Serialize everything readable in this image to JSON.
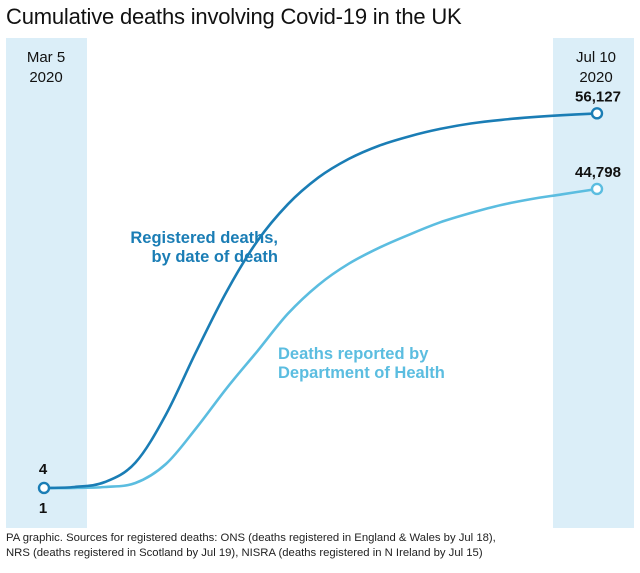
{
  "title": "Cumulative deaths involving Covid-19 in the UK",
  "chart_data": {
    "type": "line",
    "x_start_label": [
      "Mar 5",
      "2020"
    ],
    "x_end_label": [
      "Jul 10",
      "2020"
    ],
    "ylim": [
      0,
      60000
    ],
    "xlim": [
      "2020-03-05",
      "2020-07-10"
    ],
    "series": [
      {
        "name": "Registered deaths, by date of death",
        "label_lines": [
          "Registered deaths,",
          "by date of death"
        ],
        "color": "#1a7db5",
        "start_label": "4",
        "end_label": "56,127",
        "points": [
          [
            "2020-03-05",
            4
          ],
          [
            "2020-03-12",
            150
          ],
          [
            "2020-03-19",
            900
          ],
          [
            "2020-03-26",
            3800
          ],
          [
            "2020-04-02",
            11000
          ],
          [
            "2020-04-09",
            20500
          ],
          [
            "2020-04-16",
            29500
          ],
          [
            "2020-04-23",
            37000
          ],
          [
            "2020-04-30",
            42500
          ],
          [
            "2020-05-07",
            46500
          ],
          [
            "2020-05-14",
            49300
          ],
          [
            "2020-05-21",
            51300
          ],
          [
            "2020-05-28",
            52700
          ],
          [
            "2020-06-04",
            53800
          ],
          [
            "2020-06-11",
            54600
          ],
          [
            "2020-06-18",
            55150
          ],
          [
            "2020-06-25",
            55550
          ],
          [
            "2020-07-02",
            55850
          ],
          [
            "2020-07-10",
            56127
          ]
        ]
      },
      {
        "name": "Deaths reported by Department of Health",
        "label_lines": [
          "Deaths reported by",
          "Department of Health"
        ],
        "color": "#5bbde0",
        "start_label": "1",
        "end_label": "44,798",
        "points": [
          [
            "2020-03-05",
            1
          ],
          [
            "2020-03-12",
            10
          ],
          [
            "2020-03-19",
            150
          ],
          [
            "2020-03-26",
            750
          ],
          [
            "2020-04-02",
            3600
          ],
          [
            "2020-04-09",
            9000
          ],
          [
            "2020-04-16",
            15000
          ],
          [
            "2020-04-23",
            20500
          ],
          [
            "2020-04-30",
            26100
          ],
          [
            "2020-05-07",
            30400
          ],
          [
            "2020-05-14",
            33600
          ],
          [
            "2020-05-21",
            36000
          ],
          [
            "2020-05-28",
            38000
          ],
          [
            "2020-06-04",
            39800
          ],
          [
            "2020-06-11",
            41200
          ],
          [
            "2020-06-18",
            42400
          ],
          [
            "2020-06-25",
            43300
          ],
          [
            "2020-07-02",
            44000
          ],
          [
            "2020-07-10",
            44798
          ]
        ]
      }
    ]
  },
  "source_lines": [
    "PA graphic. Sources for registered deaths: ONS (deaths registered in England & Wales by Jul 18),",
    "NRS (deaths registered in Scotland by Jul 19), NISRA (deaths registered in N Ireland by Jul 15)"
  ],
  "colors": {
    "band": "#dbeef8",
    "dark_blue": "#1a7db5",
    "light_blue": "#5bbde0"
  }
}
